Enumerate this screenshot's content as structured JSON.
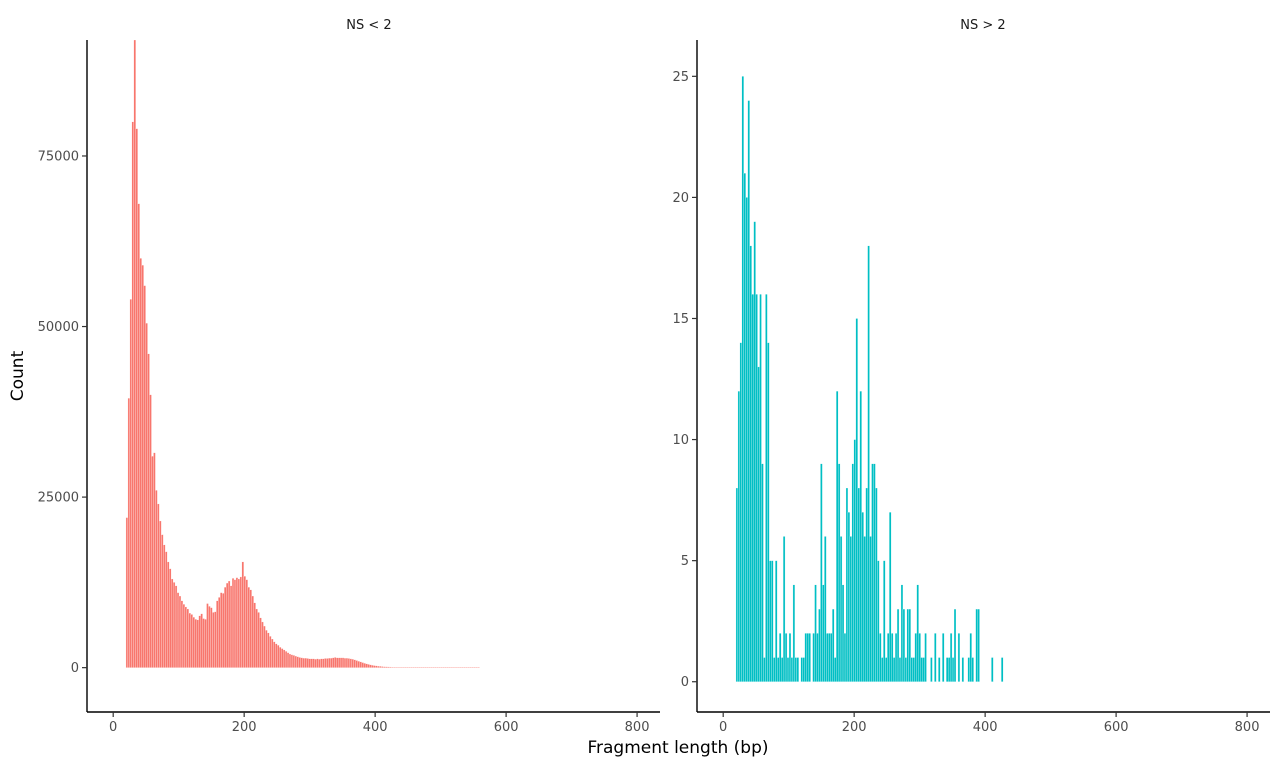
{
  "chart_data": {
    "type": "bar",
    "xlabel": "Fragment length (bp)",
    "ylabel": "Count",
    "grid": false,
    "legend": "none",
    "panels": [
      {
        "title": "NS < 2",
        "color": "#F8766D",
        "xlim": [
          -40,
          835
        ],
        "ylim": [
          -6500,
          92000
        ],
        "xticks": [
          0,
          200,
          400,
          600,
          800
        ],
        "yticks": [
          0,
          25000,
          50000,
          75000
        ],
        "binwidth": 3,
        "points": [
          [
            21,
            22000
          ],
          [
            24,
            39500
          ],
          [
            27,
            54000
          ],
          [
            30,
            80000
          ],
          [
            33,
            92000
          ],
          [
            36,
            79000
          ],
          [
            39,
            68000
          ],
          [
            42,
            60000
          ],
          [
            45,
            59000
          ],
          [
            48,
            56000
          ],
          [
            51,
            50500
          ],
          [
            54,
            46000
          ],
          [
            57,
            40000
          ],
          [
            60,
            31000
          ],
          [
            63,
            31500
          ],
          [
            66,
            26000
          ],
          [
            69,
            24000
          ],
          [
            72,
            21500
          ],
          [
            75,
            19500
          ],
          [
            78,
            18000
          ],
          [
            81,
            17000
          ],
          [
            84,
            15500
          ],
          [
            87,
            14500
          ],
          [
            90,
            13000
          ],
          [
            93,
            12500
          ],
          [
            96,
            12000
          ],
          [
            99,
            11000
          ],
          [
            102,
            10500
          ],
          [
            105,
            9800
          ],
          [
            108,
            9300
          ],
          [
            111,
            8900
          ],
          [
            114,
            8600
          ],
          [
            117,
            8000
          ],
          [
            120,
            7800
          ],
          [
            123,
            7400
          ],
          [
            126,
            7100
          ],
          [
            129,
            7000
          ],
          [
            132,
            7600
          ],
          [
            135,
            7900
          ],
          [
            138,
            7200
          ],
          [
            141,
            7100
          ],
          [
            144,
            9400
          ],
          [
            147,
            9000
          ],
          [
            150,
            8800
          ],
          [
            153,
            8100
          ],
          [
            156,
            8200
          ],
          [
            159,
            9800
          ],
          [
            162,
            10300
          ],
          [
            165,
            11000
          ],
          [
            168,
            10900
          ],
          [
            171,
            11800
          ],
          [
            174,
            12400
          ],
          [
            177,
            12700
          ],
          [
            180,
            12000
          ],
          [
            183,
            13100
          ],
          [
            186,
            12900
          ],
          [
            189,
            13200
          ],
          [
            192,
            13000
          ],
          [
            195,
            13300
          ],
          [
            198,
            15500
          ],
          [
            201,
            13400
          ],
          [
            204,
            12900
          ],
          [
            207,
            11800
          ],
          [
            210,
            11400
          ],
          [
            213,
            10500
          ],
          [
            216,
            9500
          ],
          [
            219,
            8600
          ],
          [
            222,
            8100
          ],
          [
            225,
            7300
          ],
          [
            228,
            6700
          ],
          [
            231,
            6100
          ],
          [
            234,
            5500
          ],
          [
            237,
            5100
          ],
          [
            240,
            4600
          ],
          [
            243,
            4200
          ],
          [
            246,
            3800
          ],
          [
            249,
            3500
          ],
          [
            252,
            3300
          ],
          [
            255,
            3000
          ],
          [
            258,
            2800
          ],
          [
            261,
            2600
          ],
          [
            264,
            2400
          ],
          [
            267,
            2200
          ],
          [
            270,
            2000
          ],
          [
            273,
            1900
          ],
          [
            276,
            1800
          ],
          [
            279,
            1700
          ],
          [
            282,
            1600
          ],
          [
            285,
            1500
          ],
          [
            288,
            1450
          ],
          [
            291,
            1400
          ],
          [
            294,
            1400
          ],
          [
            297,
            1350
          ],
          [
            300,
            1300
          ],
          [
            303,
            1300
          ],
          [
            306,
            1300
          ],
          [
            309,
            1250
          ],
          [
            312,
            1300
          ],
          [
            315,
            1250
          ],
          [
            318,
            1300
          ],
          [
            321,
            1300
          ],
          [
            324,
            1350
          ],
          [
            327,
            1350
          ],
          [
            330,
            1400
          ],
          [
            333,
            1400
          ],
          [
            336,
            1450
          ],
          [
            339,
            1500
          ],
          [
            342,
            1450
          ],
          [
            345,
            1450
          ],
          [
            348,
            1450
          ],
          [
            351,
            1450
          ],
          [
            354,
            1400
          ],
          [
            357,
            1400
          ],
          [
            360,
            1350
          ],
          [
            363,
            1300
          ],
          [
            366,
            1250
          ],
          [
            369,
            1150
          ],
          [
            372,
            1050
          ],
          [
            375,
            950
          ],
          [
            378,
            850
          ],
          [
            381,
            750
          ],
          [
            384,
            650
          ],
          [
            387,
            560
          ],
          [
            390,
            480
          ],
          [
            393,
            420
          ],
          [
            396,
            360
          ],
          [
            399,
            310
          ],
          [
            402,
            270
          ],
          [
            405,
            230
          ],
          [
            408,
            200
          ],
          [
            411,
            170
          ],
          [
            414,
            150
          ],
          [
            417,
            130
          ],
          [
            420,
            110
          ],
          [
            423,
            100
          ],
          [
            426,
            90
          ],
          [
            429,
            80
          ],
          [
            432,
            70
          ],
          [
            435,
            60
          ],
          [
            438,
            55
          ],
          [
            441,
            50
          ],
          [
            444,
            45
          ],
          [
            447,
            40
          ],
          [
            450,
            35
          ],
          [
            453,
            32
          ],
          [
            456,
            29
          ],
          [
            459,
            26
          ],
          [
            462,
            23
          ],
          [
            465,
            21
          ],
          [
            468,
            19
          ],
          [
            471,
            17
          ],
          [
            474,
            15
          ],
          [
            477,
            14
          ],
          [
            480,
            12
          ],
          [
            483,
            11
          ],
          [
            486,
            10
          ],
          [
            489,
            9
          ],
          [
            492,
            8
          ],
          [
            495,
            7
          ],
          [
            498,
            6
          ],
          [
            501,
            6
          ],
          [
            504,
            5
          ],
          [
            507,
            5
          ],
          [
            510,
            4
          ],
          [
            513,
            4
          ],
          [
            516,
            3
          ],
          [
            519,
            3
          ],
          [
            522,
            3
          ],
          [
            525,
            2
          ],
          [
            528,
            2
          ],
          [
            531,
            2
          ],
          [
            534,
            2
          ],
          [
            537,
            1
          ],
          [
            540,
            1
          ],
          [
            543,
            1
          ],
          [
            546,
            1
          ],
          [
            549,
            1
          ],
          [
            552,
            1
          ],
          [
            555,
            1
          ],
          [
            558,
            1
          ]
        ]
      },
      {
        "title": "NS > 2",
        "color": "#00BFC4",
        "xlim": [
          -40,
          835
        ],
        "ylim": [
          -1.25,
          26.5
        ],
        "xticks": [
          0,
          200,
          400,
          600,
          800
        ],
        "yticks": [
          0,
          5,
          10,
          15,
          20,
          25
        ],
        "binwidth": 3,
        "points": [
          [
            21,
            8
          ],
          [
            24,
            12
          ],
          [
            27,
            14
          ],
          [
            30,
            25
          ],
          [
            33,
            21
          ],
          [
            36,
            20
          ],
          [
            39,
            24
          ],
          [
            42,
            18
          ],
          [
            45,
            16
          ],
          [
            48,
            19
          ],
          [
            51,
            16
          ],
          [
            54,
            13
          ],
          [
            57,
            16
          ],
          [
            60,
            9
          ],
          [
            63,
            1
          ],
          [
            66,
            16
          ],
          [
            69,
            14
          ],
          [
            72,
            5
          ],
          [
            75,
            5
          ],
          [
            78,
            1
          ],
          [
            81,
            5
          ],
          [
            84,
            1
          ],
          [
            87,
            2
          ],
          [
            90,
            1
          ],
          [
            93,
            6
          ],
          [
            96,
            2
          ],
          [
            99,
            1
          ],
          [
            102,
            2
          ],
          [
            105,
            1
          ],
          [
            108,
            4
          ],
          [
            111,
            1
          ],
          [
            114,
            1
          ],
          [
            120,
            1
          ],
          [
            123,
            1
          ],
          [
            126,
            2
          ],
          [
            129,
            2
          ],
          [
            132,
            2
          ],
          [
            138,
            2
          ],
          [
            141,
            4
          ],
          [
            144,
            2
          ],
          [
            147,
            3
          ],
          [
            150,
            9
          ],
          [
            153,
            4
          ],
          [
            156,
            6
          ],
          [
            159,
            2
          ],
          [
            162,
            2
          ],
          [
            165,
            2
          ],
          [
            168,
            3
          ],
          [
            171,
            1
          ],
          [
            174,
            12
          ],
          [
            177,
            9
          ],
          [
            180,
            6
          ],
          [
            183,
            4
          ],
          [
            186,
            2
          ],
          [
            189,
            8
          ],
          [
            192,
            7
          ],
          [
            195,
            6
          ],
          [
            198,
            9
          ],
          [
            201,
            10
          ],
          [
            204,
            15
          ],
          [
            207,
            8
          ],
          [
            210,
            12
          ],
          [
            213,
            7
          ],
          [
            216,
            6
          ],
          [
            219,
            8
          ],
          [
            222,
            18
          ],
          [
            225,
            6
          ],
          [
            228,
            9
          ],
          [
            231,
            9
          ],
          [
            234,
            8
          ],
          [
            237,
            5
          ],
          [
            240,
            2
          ],
          [
            243,
            1
          ],
          [
            246,
            5
          ],
          [
            249,
            1
          ],
          [
            252,
            2
          ],
          [
            255,
            7
          ],
          [
            258,
            2
          ],
          [
            261,
            1
          ],
          [
            264,
            2
          ],
          [
            267,
            3
          ],
          [
            270,
            1
          ],
          [
            273,
            4
          ],
          [
            276,
            3
          ],
          [
            279,
            1
          ],
          [
            282,
            3
          ],
          [
            285,
            3
          ],
          [
            288,
            1
          ],
          [
            291,
            1
          ],
          [
            294,
            2
          ],
          [
            297,
            4
          ],
          [
            300,
            2
          ],
          [
            303,
            1
          ],
          [
            306,
            1
          ],
          [
            309,
            2
          ],
          [
            318,
            1
          ],
          [
            324,
            2
          ],
          [
            330,
            1
          ],
          [
            336,
            2
          ],
          [
            342,
            1
          ],
          [
            345,
            1
          ],
          [
            348,
            2
          ],
          [
            351,
            1
          ],
          [
            354,
            3
          ],
          [
            360,
            2
          ],
          [
            366,
            1
          ],
          [
            375,
            1
          ],
          [
            378,
            2
          ],
          [
            381,
            1
          ],
          [
            387,
            3
          ],
          [
            390,
            3
          ],
          [
            411,
            1
          ],
          [
            426,
            1
          ]
        ]
      }
    ]
  }
}
